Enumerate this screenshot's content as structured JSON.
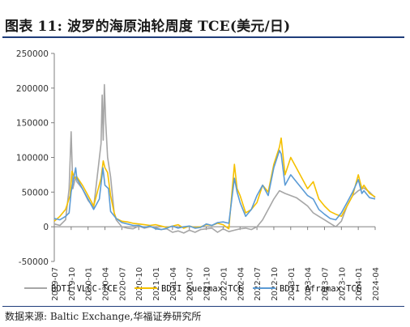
{
  "header": {
    "title": "图表 11:  波罗的海原油轮周度 TCE(美元/日)"
  },
  "footer": {
    "source": "数据来源:  Baltic Exchange,华福证券研究所"
  },
  "chart_data": {
    "type": "line",
    "title": "图表 11:  波罗的海原油轮周度 TCE(美元/日)",
    "ylim": [
      -50000,
      250000
    ],
    "yticks": [
      250000,
      200000,
      150000,
      100000,
      50000,
      0,
      -50000
    ],
    "ytick_labels": [
      "250000",
      "200000",
      "150000",
      "100000",
      "50000",
      "0",
      "-50000"
    ],
    "xlim": [
      "2019-07",
      "2024-04"
    ],
    "xticks": [
      "2019-07",
      "2019-10",
      "2020-01",
      "2020-04",
      "2020-07",
      "2020-10",
      "2021-01",
      "2021-04",
      "2021-07",
      "2021-10",
      "2022-01",
      "2022-04",
      "2022-07",
      "2022-10",
      "2023-01",
      "2023-04",
      "2023-07",
      "2023-10",
      "2024-01",
      "2024-04"
    ],
    "grid": false,
    "legend_position": "bottom",
    "series": [
      {
        "name": "BDTI VLCC-TCE",
        "color": "#a6a6a6",
        "points": [
          [
            "2019-07",
            4000
          ],
          [
            "2019-08",
            2000
          ],
          [
            "2019-09",
            10000
          ],
          [
            "2019-09-20",
            55000
          ],
          [
            "2019-10-01",
            137000
          ],
          [
            "2019-10-10",
            55000
          ],
          [
            "2019-10-25",
            72000
          ],
          [
            "2019-11",
            65000
          ],
          [
            "2019-12",
            55000
          ],
          [
            "2020-01",
            38000
          ],
          [
            "2020-02",
            28000
          ],
          [
            "2020-03-10",
            120000
          ],
          [
            "2020-03-16",
            190000
          ],
          [
            "2020-03-22",
            125000
          ],
          [
            "2020-03-28",
            205000
          ],
          [
            "2020-04-05",
            150000
          ],
          [
            "2020-04-15",
            100000
          ],
          [
            "2020-05",
            72000
          ],
          [
            "2020-05-20",
            20000
          ],
          [
            "2020-06",
            10000
          ],
          [
            "2020-07",
            0
          ],
          [
            "2020-08",
            -2000
          ],
          [
            "2020-09",
            -3000
          ],
          [
            "2020-10",
            1000
          ],
          [
            "2020-11",
            -2000
          ],
          [
            "2020-12",
            0
          ],
          [
            "2021-01",
            -1000
          ],
          [
            "2021-02",
            -4000
          ],
          [
            "2021-03",
            -3000
          ],
          [
            "2021-04",
            -8000
          ],
          [
            "2021-05",
            -6000
          ],
          [
            "2021-06",
            -9000
          ],
          [
            "2021-07",
            -5000
          ],
          [
            "2021-08",
            -8000
          ],
          [
            "2021-09",
            -4000
          ],
          [
            "2021-10",
            -3000
          ],
          [
            "2021-11",
            -2000
          ],
          [
            "2021-12",
            -8000
          ],
          [
            "2022-01",
            -3000
          ],
          [
            "2022-02",
            -7000
          ],
          [
            "2022-03",
            -5000
          ],
          [
            "2022-04",
            -3000
          ],
          [
            "2022-05",
            -2000
          ],
          [
            "2022-06",
            -4000
          ],
          [
            "2022-07",
            0
          ],
          [
            "2022-08",
            10000
          ],
          [
            "2022-09",
            25000
          ],
          [
            "2022-10",
            40000
          ],
          [
            "2022-11",
            52000
          ],
          [
            "2022-12",
            48000
          ],
          [
            "2023-01",
            45000
          ],
          [
            "2023-02",
            42000
          ],
          [
            "2023-03",
            36000
          ],
          [
            "2023-04",
            30000
          ],
          [
            "2023-05",
            20000
          ],
          [
            "2023-06",
            15000
          ],
          [
            "2023-07",
            10000
          ],
          [
            "2023-08",
            5000
          ],
          [
            "2023-09",
            0
          ],
          [
            "2023-10",
            8000
          ],
          [
            "2023-11",
            30000
          ],
          [
            "2023-12",
            45000
          ],
          [
            "2024-01",
            52000
          ],
          [
            "2024-02",
            56000
          ],
          [
            "2024-03",
            50000
          ],
          [
            "2024-04",
            42000
          ]
        ]
      },
      {
        "name": "BDTI Suezmax-TCE",
        "color": "#f5c000",
        "points": [
          [
            "2019-07",
            8000
          ],
          [
            "2019-08",
            15000
          ],
          [
            "2019-09",
            25000
          ],
          [
            "2019-09-25",
            45000
          ],
          [
            "2019-10-05",
            80000
          ],
          [
            "2019-10-20",
            70000
          ],
          [
            "2019-11",
            72000
          ],
          [
            "2019-12",
            60000
          ],
          [
            "2020-01",
            45000
          ],
          [
            "2020-02",
            30000
          ],
          [
            "2020-03-10",
            70000
          ],
          [
            "2020-03-22",
            95000
          ],
          [
            "2020-04",
            85000
          ],
          [
            "2020-04-15",
            78000
          ],
          [
            "2020-05",
            45000
          ],
          [
            "2020-05-20",
            20000
          ],
          [
            "2020-06",
            12000
          ],
          [
            "2020-07",
            8000
          ],
          [
            "2020-08",
            7000
          ],
          [
            "2020-09",
            5000
          ],
          [
            "2020-10",
            4000
          ],
          [
            "2020-11",
            3000
          ],
          [
            "2020-12",
            2000
          ],
          [
            "2021-01",
            3000
          ],
          [
            "2021-02",
            1000
          ],
          [
            "2021-03",
            -1000
          ],
          [
            "2021-04",
            1000
          ],
          [
            "2021-05",
            3000
          ],
          [
            "2021-06",
            -2000
          ],
          [
            "2021-07",
            1000
          ],
          [
            "2021-08",
            -1000
          ],
          [
            "2021-09",
            0
          ],
          [
            "2021-10",
            3000
          ],
          [
            "2021-11",
            2000
          ],
          [
            "2021-12",
            5000
          ],
          [
            "2022-01",
            3000
          ],
          [
            "2022-02",
            -3000
          ],
          [
            "2022-03",
            90000
          ],
          [
            "2022-03-15",
            55000
          ],
          [
            "2022-04",
            45000
          ],
          [
            "2022-05",
            20000
          ],
          [
            "2022-06",
            25000
          ],
          [
            "2022-07",
            35000
          ],
          [
            "2022-08",
            60000
          ],
          [
            "2022-09",
            50000
          ],
          [
            "2022-10",
            90000
          ],
          [
            "2022-11",
            115000
          ],
          [
            "2022-11-10",
            128000
          ],
          [
            "2022-12",
            75000
          ],
          [
            "2023-01",
            100000
          ],
          [
            "2023-02",
            85000
          ],
          [
            "2023-03",
            70000
          ],
          [
            "2023-04",
            55000
          ],
          [
            "2023-05",
            65000
          ],
          [
            "2023-06",
            40000
          ],
          [
            "2023-07",
            30000
          ],
          [
            "2023-08",
            22000
          ],
          [
            "2023-09",
            18000
          ],
          [
            "2023-10",
            15000
          ],
          [
            "2023-11",
            30000
          ],
          [
            "2023-12",
            45000
          ],
          [
            "2024-01",
            75000
          ],
          [
            "2024-01-20",
            55000
          ],
          [
            "2024-02",
            60000
          ],
          [
            "2024-03",
            48000
          ],
          [
            "2024-04",
            43000
          ]
        ]
      },
      {
        "name": "BDTI Aframax-TCE",
        "color": "#5b9bd5",
        "points": [
          [
            "2019-07",
            12000
          ],
          [
            "2019-08",
            10000
          ],
          [
            "2019-09",
            15000
          ],
          [
            "2019-09-20",
            20000
          ],
          [
            "2019-10",
            50000
          ],
          [
            "2019-10-25",
            85000
          ],
          [
            "2019-11",
            70000
          ],
          [
            "2019-12",
            55000
          ],
          [
            "2020-01",
            40000
          ],
          [
            "2020-02",
            25000
          ],
          [
            "2020-03",
            40000
          ],
          [
            "2020-03-20",
            85000
          ],
          [
            "2020-04",
            60000
          ],
          [
            "2020-04-20",
            55000
          ],
          [
            "2020-05",
            22000
          ],
          [
            "2020-06",
            12000
          ],
          [
            "2020-07",
            6000
          ],
          [
            "2020-08",
            4000
          ],
          [
            "2020-09",
            2000
          ],
          [
            "2020-10",
            2000
          ],
          [
            "2020-11",
            -1000
          ],
          [
            "2020-12",
            1000
          ],
          [
            "2021-01",
            -3000
          ],
          [
            "2021-02",
            -4000
          ],
          [
            "2021-03",
            -2000
          ],
          [
            "2021-04",
            1000
          ],
          [
            "2021-05",
            -2000
          ],
          [
            "2021-06",
            0
          ],
          [
            "2021-07",
            1000
          ],
          [
            "2021-08",
            -2000
          ],
          [
            "2021-09",
            -1000
          ],
          [
            "2021-10",
            4000
          ],
          [
            "2021-11",
            2000
          ],
          [
            "2021-12",
            6000
          ],
          [
            "2022-01",
            7000
          ],
          [
            "2022-02",
            5000
          ],
          [
            "2022-03",
            70000
          ],
          [
            "2022-03-15",
            50000
          ],
          [
            "2022-04",
            35000
          ],
          [
            "2022-05",
            15000
          ],
          [
            "2022-06",
            25000
          ],
          [
            "2022-07",
            45000
          ],
          [
            "2022-08",
            60000
          ],
          [
            "2022-09",
            45000
          ],
          [
            "2022-10",
            85000
          ],
          [
            "2022-11",
            110000
          ],
          [
            "2022-11-10",
            105000
          ],
          [
            "2022-12",
            60000
          ],
          [
            "2023-01",
            75000
          ],
          [
            "2023-02",
            65000
          ],
          [
            "2023-03",
            55000
          ],
          [
            "2023-04",
            45000
          ],
          [
            "2023-05",
            40000
          ],
          [
            "2023-06",
            25000
          ],
          [
            "2023-07",
            18000
          ],
          [
            "2023-08",
            12000
          ],
          [
            "2023-09",
            10000
          ],
          [
            "2023-10",
            20000
          ],
          [
            "2023-11",
            35000
          ],
          [
            "2023-12",
            50000
          ],
          [
            "2024-01",
            68000
          ],
          [
            "2024-01-20",
            48000
          ],
          [
            "2024-02",
            52000
          ],
          [
            "2024-03",
            42000
          ],
          [
            "2024-04",
            40000
          ]
        ]
      }
    ]
  }
}
